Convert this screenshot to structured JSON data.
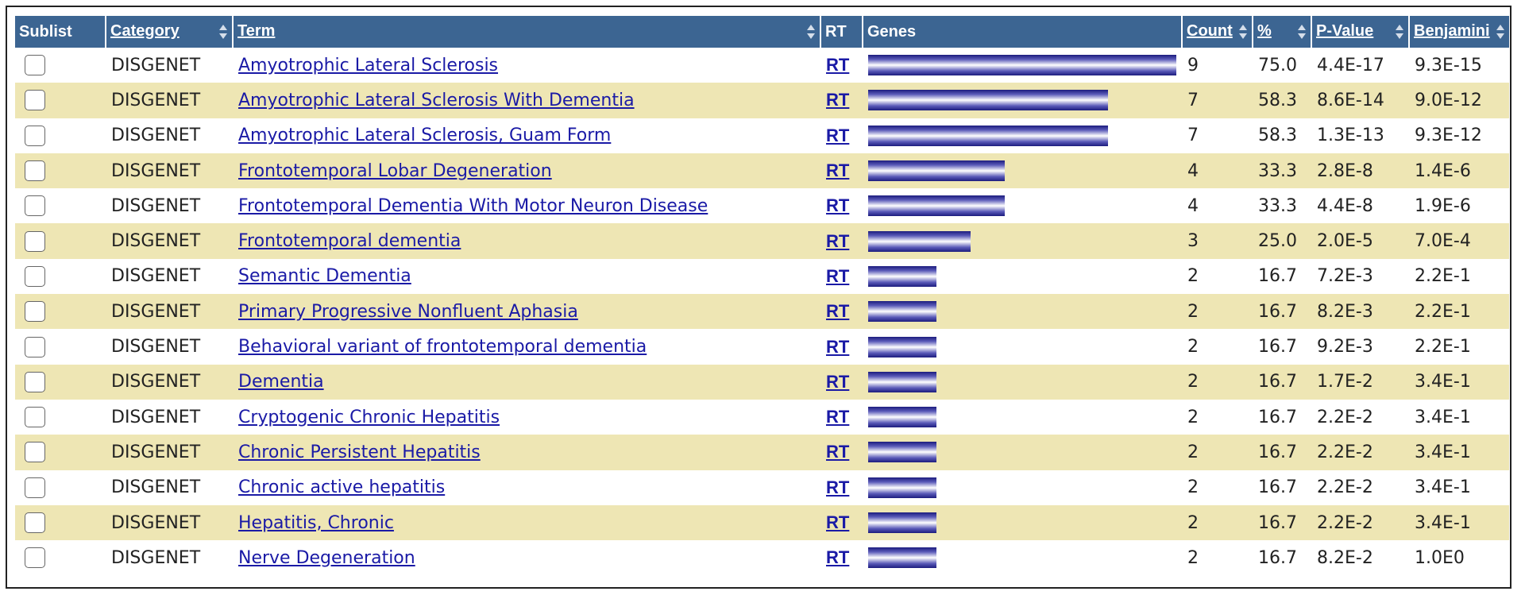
{
  "header": {
    "sublist": "Sublist",
    "category": "Category",
    "term": "Term",
    "rt": "RT",
    "genes": "Genes",
    "count": "Count",
    "percent": "%",
    "pvalue": "P-Value",
    "benjamini": "Benjamini"
  },
  "rows": [
    {
      "category": "DISGENET",
      "term": "Amyotrophic Lateral Sclerosis",
      "rt": "RT",
      "count": "9",
      "percent": "75.0",
      "pvalue": "4.4E-17",
      "benjamini": "9.3E-15",
      "bar_fraction": 1.0
    },
    {
      "category": "DISGENET",
      "term": "Amyotrophic Lateral Sclerosis With Dementia",
      "rt": "RT",
      "count": "7",
      "percent": "58.3",
      "pvalue": "8.6E-14",
      "benjamini": "9.0E-12",
      "bar_fraction": 0.778
    },
    {
      "category": "DISGENET",
      "term": "Amyotrophic Lateral Sclerosis, Guam Form",
      "rt": "RT",
      "count": "7",
      "percent": "58.3",
      "pvalue": "1.3E-13",
      "benjamini": "9.3E-12",
      "bar_fraction": 0.778
    },
    {
      "category": "DISGENET",
      "term": "Frontotemporal Lobar Degeneration",
      "rt": "RT",
      "count": "4",
      "percent": "33.3",
      "pvalue": "2.8E-8",
      "benjamini": "1.4E-6",
      "bar_fraction": 0.444
    },
    {
      "category": "DISGENET",
      "term": "Frontotemporal Dementia With Motor Neuron Disease",
      "rt": "RT",
      "count": "4",
      "percent": "33.3",
      "pvalue": "4.4E-8",
      "benjamini": "1.9E-6",
      "bar_fraction": 0.444
    },
    {
      "category": "DISGENET",
      "term": "Frontotemporal dementia",
      "rt": "RT",
      "count": "3",
      "percent": "25.0",
      "pvalue": "2.0E-5",
      "benjamini": "7.0E-4",
      "bar_fraction": 0.333
    },
    {
      "category": "DISGENET",
      "term": "Semantic Dementia",
      "rt": "RT",
      "count": "2",
      "percent": "16.7",
      "pvalue": "7.2E-3",
      "benjamini": "2.2E-1",
      "bar_fraction": 0.222
    },
    {
      "category": "DISGENET",
      "term": "Primary Progressive Nonfluent Aphasia",
      "rt": "RT",
      "count": "2",
      "percent": "16.7",
      "pvalue": "8.2E-3",
      "benjamini": "2.2E-1",
      "bar_fraction": 0.222
    },
    {
      "category": "DISGENET",
      "term": "Behavioral variant of frontotemporal dementia",
      "rt": "RT",
      "count": "2",
      "percent": "16.7",
      "pvalue": "9.2E-3",
      "benjamini": "2.2E-1",
      "bar_fraction": 0.222
    },
    {
      "category": "DISGENET",
      "term": "Dementia",
      "rt": "RT",
      "count": "2",
      "percent": "16.7",
      "pvalue": "1.7E-2",
      "benjamini": "3.4E-1",
      "bar_fraction": 0.222
    },
    {
      "category": "DISGENET",
      "term": "Cryptogenic Chronic Hepatitis",
      "rt": "RT",
      "count": "2",
      "percent": "16.7",
      "pvalue": "2.2E-2",
      "benjamini": "3.4E-1",
      "bar_fraction": 0.222
    },
    {
      "category": "DISGENET",
      "term": "Chronic Persistent Hepatitis",
      "rt": "RT",
      "count": "2",
      "percent": "16.7",
      "pvalue": "2.2E-2",
      "benjamini": "3.4E-1",
      "bar_fraction": 0.222
    },
    {
      "category": "DISGENET",
      "term": "Chronic active hepatitis",
      "rt": "RT",
      "count": "2",
      "percent": "16.7",
      "pvalue": "2.2E-2",
      "benjamini": "3.4E-1",
      "bar_fraction": 0.222
    },
    {
      "category": "DISGENET",
      "term": "Hepatitis, Chronic",
      "rt": "RT",
      "count": "2",
      "percent": "16.7",
      "pvalue": "2.2E-2",
      "benjamini": "3.4E-1",
      "bar_fraction": 0.222
    },
    {
      "category": "DISGENET",
      "term": "Nerve Degeneration",
      "rt": "RT",
      "count": "2",
      "percent": "16.7",
      "pvalue": "8.2E-2",
      "benjamini": "1.0E0",
      "bar_fraction": 0.222
    }
  ]
}
